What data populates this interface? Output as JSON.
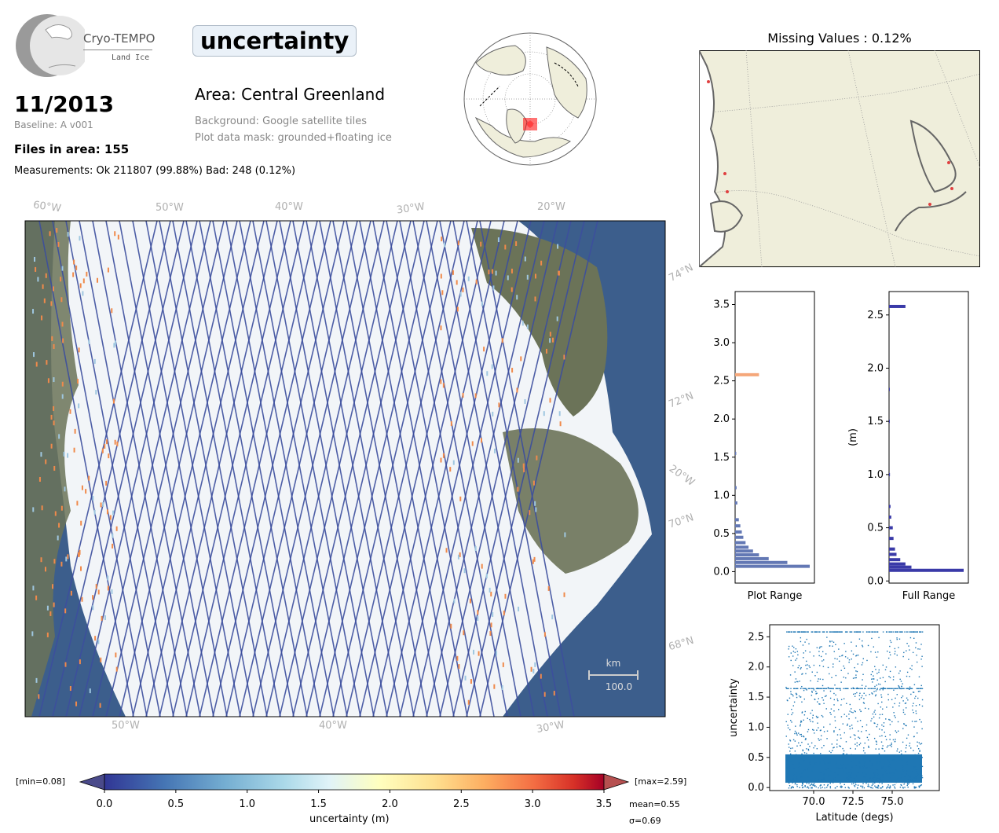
{
  "header": {
    "logo_name": "Cryo-TEMPO",
    "logo_sub": "Land Ice",
    "date": "11/2013",
    "baseline": "Baseline: A v001",
    "files": "Files in area: 155",
    "measurements": "Measurements: Ok 211807 (99.88%) Bad: 248 (0.12%)",
    "variable": "uncertainty",
    "area": "Area: Central Greenland",
    "background": "Background: Google satellite tiles",
    "mask": "Plot data mask: grounded+floating ice"
  },
  "main_map": {
    "lon_labels_top": [
      "60°W",
      "50°W",
      "40°W",
      "30°W",
      "20°W"
    ],
    "lon_labels_bottom": [
      "50°W",
      "40°W",
      "30°W"
    ],
    "lat_labels": [
      "74°N",
      "72°N",
      "70°N",
      "68°N"
    ],
    "side_labels": [
      "60°W",
      "20°W"
    ],
    "scale_unit": "km",
    "scale_value": "100.0"
  },
  "colors": {
    "ocean": "#3c5e8c",
    "ice": "#f2f5f8",
    "rock": "#6b7358",
    "track": "#3c4e9e",
    "hist_plot": "#6378b4",
    "hist_full": "#3a3aa8",
    "scatter": "#1f77b4",
    "land": "#efeedb"
  },
  "colorbar": {
    "min_label": "[min=0.08]",
    "max_label": "[max=2.59]",
    "ticks": [
      "0.0",
      "0.5",
      "1.0",
      "1.5",
      "2.0",
      "2.5",
      "3.0",
      "3.5"
    ],
    "label": "uncertainty (m)",
    "mean": "mean=0.55",
    "sigma": "σ=0.69"
  },
  "missing": {
    "title": "Missing Values : 0.12%"
  },
  "chart_data": [
    {
      "type": "bar",
      "orientation": "horizontal",
      "xlabel": "Plot Range",
      "ylim": [
        -0.15,
        3.67
      ],
      "yticks": [
        "0.0",
        "0.5",
        "1.0",
        "1.5",
        "2.0",
        "2.5",
        "3.0",
        "3.5"
      ],
      "bins": [
        {
          "y": 0.07,
          "v": 1.0
        },
        {
          "y": 0.12,
          "v": 0.7
        },
        {
          "y": 0.17,
          "v": 0.45
        },
        {
          "y": 0.22,
          "v": 0.32
        },
        {
          "y": 0.27,
          "v": 0.24
        },
        {
          "y": 0.32,
          "v": 0.18
        },
        {
          "y": 0.38,
          "v": 0.14
        },
        {
          "y": 0.45,
          "v": 0.11
        },
        {
          "y": 0.52,
          "v": 0.09
        },
        {
          "y": 0.6,
          "v": 0.07
        },
        {
          "y": 0.68,
          "v": 0.05
        },
        {
          "y": 0.9,
          "v": 0.03
        },
        {
          "y": 1.1,
          "v": 0.02
        },
        {
          "y": 1.55,
          "v": 0.015
        },
        {
          "y": 2.58,
          "v": 0.32
        }
      ]
    },
    {
      "type": "bar",
      "orientation": "horizontal",
      "xlabel": "Full Range",
      "ylabel": "(m)",
      "ylim": [
        -0.02,
        2.72
      ],
      "yticks": [
        "0.0",
        "0.5",
        "1.0",
        "1.5",
        "2.0",
        "2.5"
      ],
      "bins": [
        {
          "y": 0.1,
          "v": 1.0
        },
        {
          "y": 0.13,
          "v": 0.3
        },
        {
          "y": 0.16,
          "v": 0.22
        },
        {
          "y": 0.2,
          "v": 0.15
        },
        {
          "y": 0.25,
          "v": 0.1
        },
        {
          "y": 0.3,
          "v": 0.08
        },
        {
          "y": 0.4,
          "v": 0.06
        },
        {
          "y": 0.5,
          "v": 0.05
        },
        {
          "y": 0.6,
          "v": 0.03
        },
        {
          "y": 0.7,
          "v": 0.02
        },
        {
          "y": 1.0,
          "v": 0.012
        },
        {
          "y": 1.5,
          "v": 0.01
        },
        {
          "y": 1.8,
          "v": 0.01
        },
        {
          "y": 2.58,
          "v": 0.22
        }
      ]
    },
    {
      "type": "scatter",
      "xlabel": "Latitude (degs)",
      "ylabel": "uncertainty",
      "xlim": [
        67.2,
        78.0
      ],
      "ylim": [
        -0.05,
        2.7
      ],
      "xticks": [
        "70.0",
        "72.5",
        "75.0"
      ],
      "yticks": [
        "0.0",
        "0.5",
        "1.0",
        "1.5",
        "2.0",
        "2.5"
      ]
    }
  ]
}
